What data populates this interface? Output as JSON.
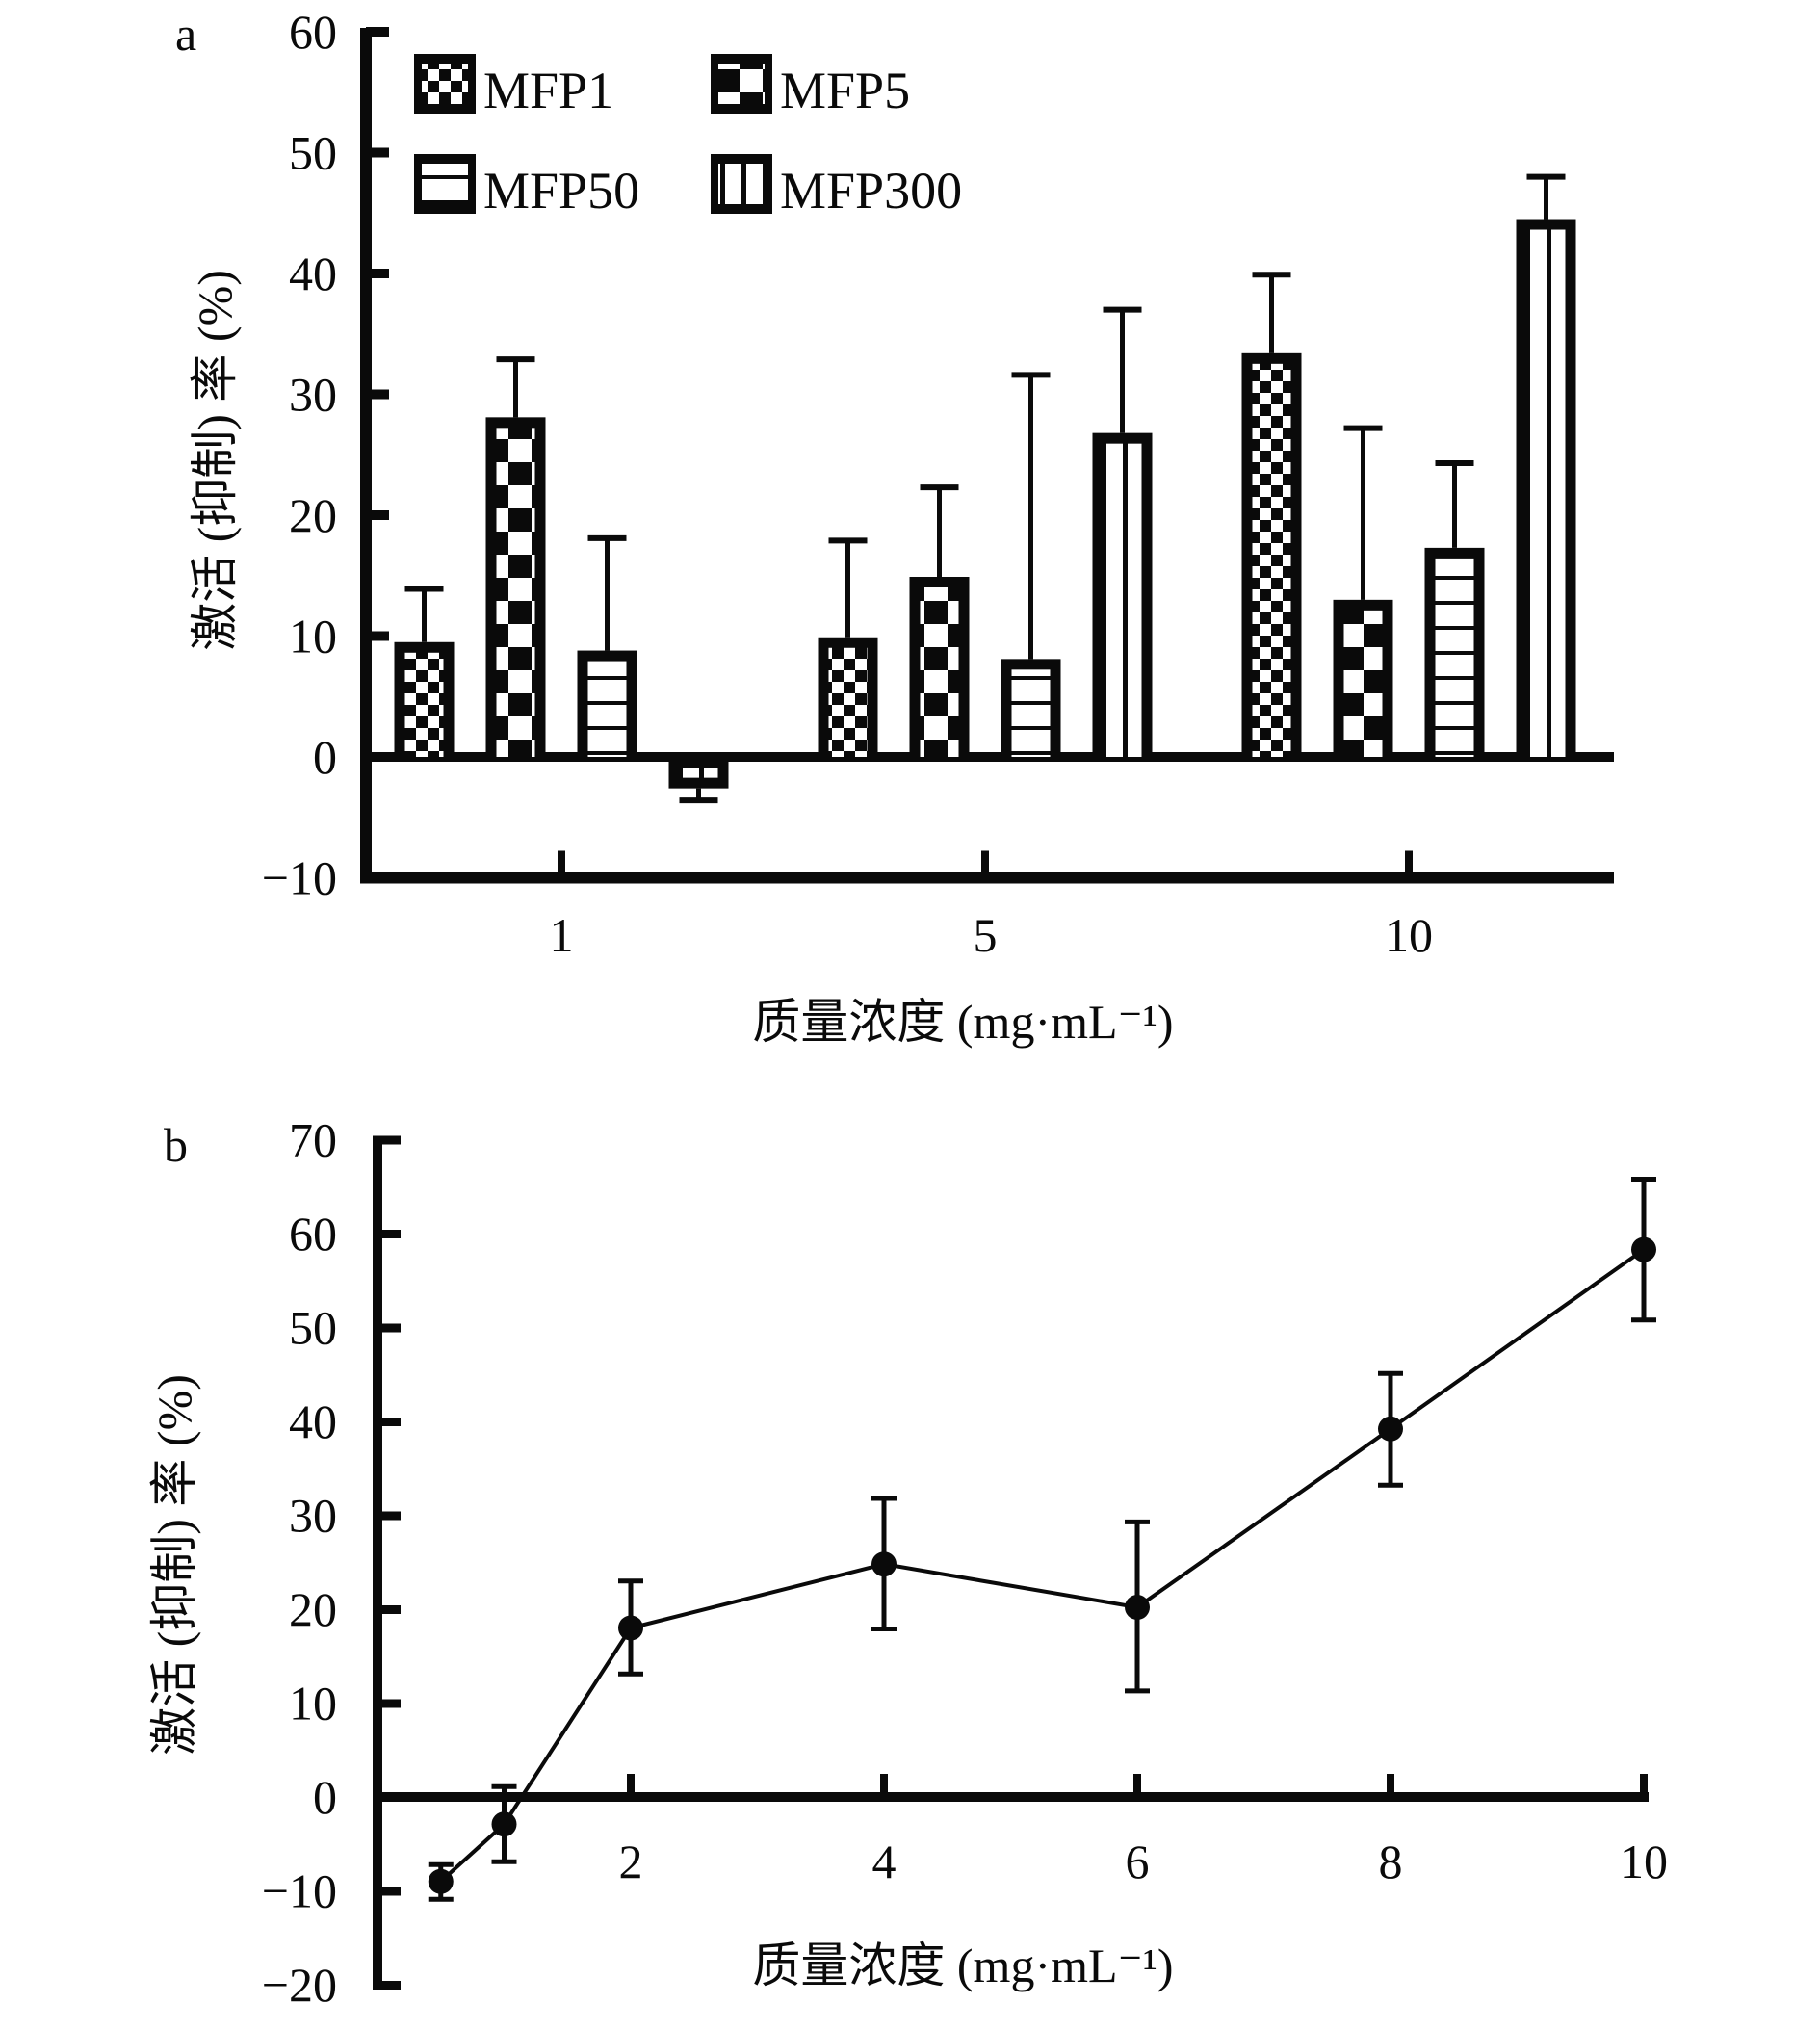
{
  "chart_data": [
    {
      "panel": "a",
      "type": "bar",
      "xlabel": "质量浓度 (mg·mL⁻¹)",
      "ylabel": "激活 (抑制) 率 (%)",
      "ylim": [
        -10,
        60
      ],
      "yticks": [
        "−10",
        "0",
        "10",
        "20",
        "30",
        "40",
        "50",
        "60"
      ],
      "ytick_values": [
        -10,
        0,
        10,
        20,
        30,
        40,
        50,
        60
      ],
      "categories": [
        "1",
        "5",
        "10"
      ],
      "legend_placement": "top-left",
      "series": [
        {
          "name": "MFP1",
          "pattern": "fine-checker",
          "values": [
            9.5,
            9.9,
            33.4
          ],
          "error_bar": [
            4.4,
            8.0,
            6.5
          ]
        },
        {
          "name": "MFP5",
          "pattern": "coarse-checker",
          "values": [
            28.1,
            14.9,
            13.0
          ],
          "error_bar": [
            4.8,
            7.4,
            14.2
          ]
        },
        {
          "name": "MFP50",
          "pattern": "horizontal-lines",
          "values": [
            8.8,
            8.1,
            17.3
          ],
          "error_bar": [
            9.3,
            23.5,
            7.0
          ]
        },
        {
          "name": "MFP300",
          "pattern": "vertical-lines",
          "values": [
            -2.6,
            26.8,
            44.5
          ],
          "error_bar": [
            -1.0,
            10.2,
            3.5
          ]
        }
      ]
    },
    {
      "panel": "b",
      "type": "line",
      "xlabel": "质量浓度 (mg·mL⁻¹)",
      "ylabel": "激活 (抑制) 率 (%)",
      "xlim": [
        0,
        10
      ],
      "ylim": [
        -20,
        70
      ],
      "xticks": [
        "2",
        "4",
        "6",
        "8",
        "10"
      ],
      "xtick_values": [
        2,
        4,
        6,
        8,
        10
      ],
      "yticks": [
        "−20",
        "−10",
        "0",
        "10",
        "20",
        "30",
        "40",
        "50",
        "60",
        "70"
      ],
      "ytick_values": [
        -20,
        -10,
        0,
        10,
        20,
        30,
        40,
        50,
        60,
        70
      ],
      "x": [
        0.5,
        1,
        2,
        4,
        6,
        8,
        10
      ],
      "y": [
        -9.0,
        -2.9,
        18.0,
        24.8,
        20.2,
        39.2,
        58.3
      ],
      "error_upper": [
        -7.2,
        1.1,
        23.0,
        31.8,
        29.3,
        45.1,
        65.8
      ],
      "error_lower": [
        -10.9,
        -6.9,
        13.1,
        17.9,
        11.3,
        33.2,
        50.8
      ]
    }
  ],
  "labels": {
    "panel_a": "a",
    "panel_b": "b"
  },
  "colors": {
    "ink": "#0a0a0a",
    "background": "#ffffff"
  }
}
